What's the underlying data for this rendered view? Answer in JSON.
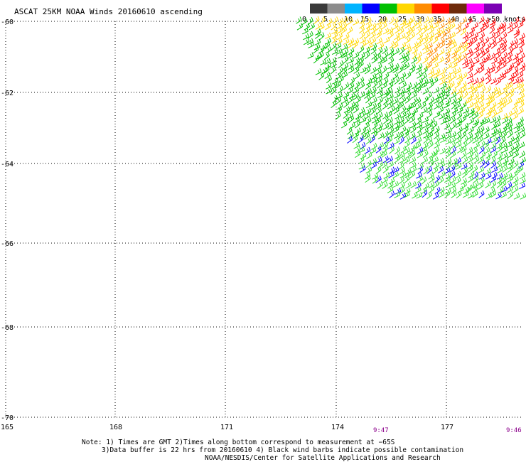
{
  "title": "ASCAT 25KM NOAA Winds 20160610 ascending",
  "colorbar": {
    "unit": "knots",
    "labels": [
      "0",
      "5",
      "10",
      "15",
      "20",
      "25",
      "30",
      "35",
      "40",
      "45",
      ">50"
    ],
    "colors": [
      "#3a3a3a",
      "#8c8c8c",
      "#00b4ff",
      "#0000ff",
      "#00c000",
      "#ffd700",
      "#ff8c00",
      "#ff0000",
      "#6e2a0a",
      "#ff00ff",
      "#7b00b4"
    ]
  },
  "lat_labels": [
    "-60",
    "-62",
    "-64",
    "-66",
    "-68",
    "-70"
  ],
  "lon_labels": [
    "165",
    "168",
    "171",
    "174",
    "177"
  ],
  "times": [
    "9:47",
    "9:46"
  ],
  "notes": [
    "Note: 1) Times are GMT 2)Times along bottom correspond to measurement at −65S",
    "3)Data buffer is 22 hrs from 20160610 4) Black wind barbs indicate possible contamination",
    "NOAA/NESDIS/Center for Satellite Applications and Research"
  ]
}
